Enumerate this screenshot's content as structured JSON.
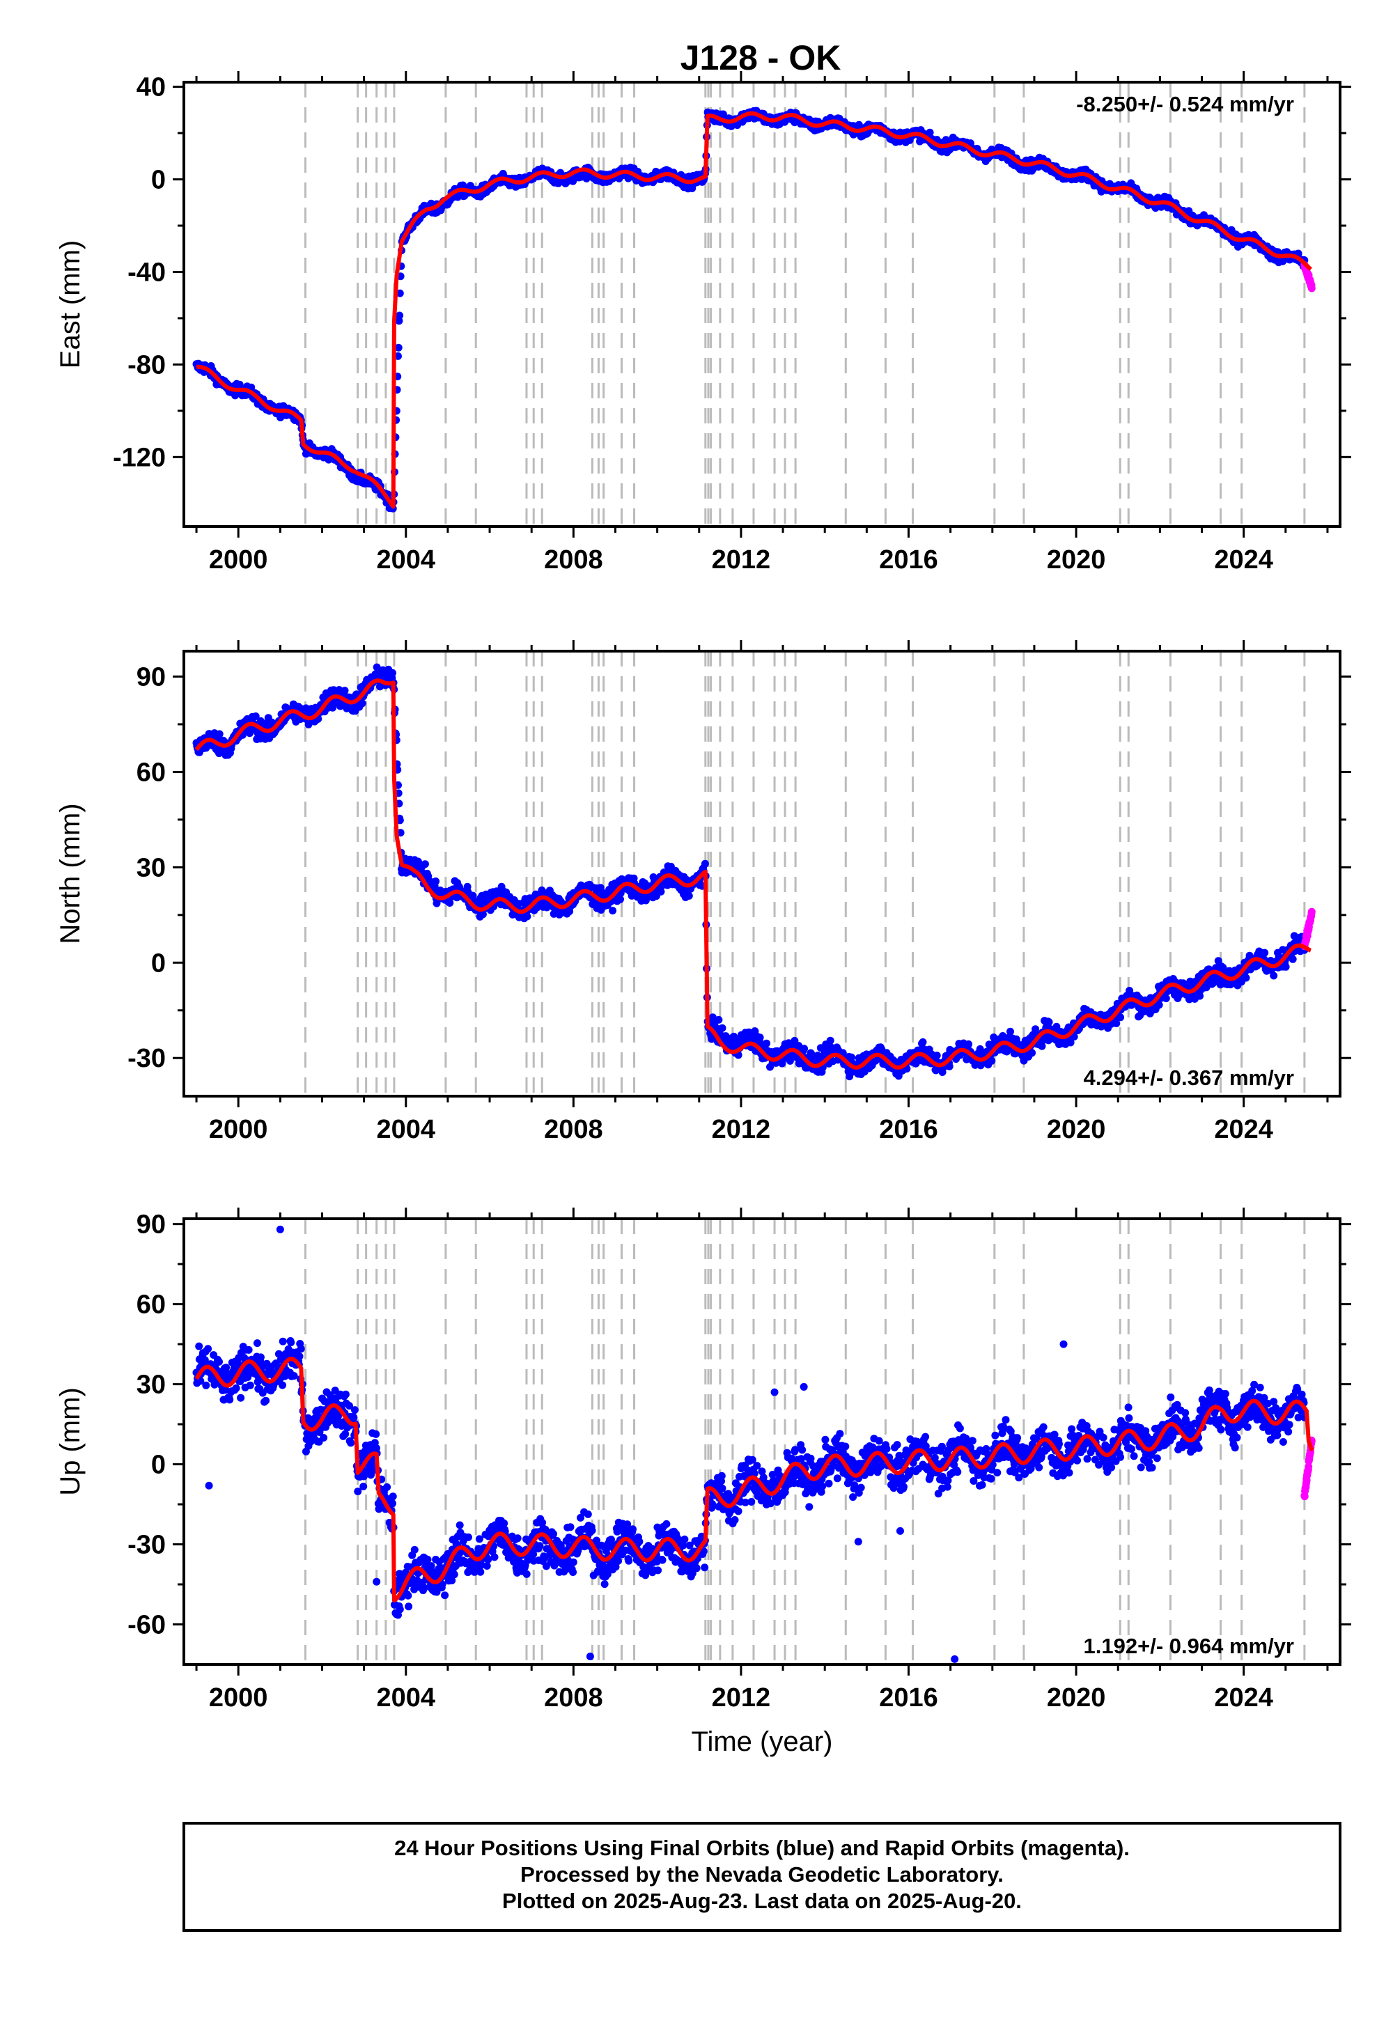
{
  "title": "J128 - OK",
  "footer": {
    "line1": "24 Hour Positions Using Final Orbits (blue) and Rapid Orbits (magenta).",
    "line2": "Processed by the Nevada Geodetic Laboratory.",
    "line3": "Plotted on 2025-Aug-23. Last data on 2025-Aug-20."
  },
  "colors": {
    "final_orbits": "#0000ff",
    "rapid_orbits": "#ff00ff",
    "model_fit": "#ff0000",
    "event_lines": "#bbbbbb"
  },
  "chart_data": [
    {
      "type": "scatter",
      "ylabel": "East (mm)",
      "xlabel": "",
      "xlim": [
        1998.7,
        2026.3
      ],
      "ylim": [
        -150,
        42
      ],
      "xticks": [
        "2000",
        "2004",
        "2008",
        "2012",
        "2016",
        "2020",
        "2024"
      ],
      "yticks": [
        "-120",
        "-80",
        "-40",
        "0",
        "40"
      ],
      "rate_label": "-8.250+/- 0.524 mm/yr",
      "rate_position": "top-right",
      "fit_points": [
        [
          1999.0,
          -81
        ],
        [
          1999.5,
          -86
        ],
        [
          2000.0,
          -91
        ],
        [
          2000.5,
          -95
        ],
        [
          2001.0,
          -100
        ],
        [
          2001.5,
          -104
        ],
        [
          2001.55,
          -114
        ],
        [
          2002.0,
          -118
        ],
        [
          2002.5,
          -123
        ],
        [
          2002.8,
          -125
        ],
        [
          2003.0,
          -128
        ],
        [
          2003.3,
          -133
        ],
        [
          2003.6,
          -138
        ],
        [
          2003.7,
          -140
        ],
        [
          2003.72,
          -60
        ],
        [
          2003.78,
          -40
        ],
        [
          2003.9,
          -26
        ],
        [
          2004.2,
          -19
        ],
        [
          2004.5,
          -13
        ],
        [
          2004.9,
          -8
        ],
        [
          2005.5,
          -5
        ],
        [
          2006.0,
          -2
        ],
        [
          2007.0,
          1
        ],
        [
          2008.0,
          3
        ],
        [
          2009.0,
          2
        ],
        [
          2010.0,
          1
        ],
        [
          2011.15,
          0
        ],
        [
          2011.2,
          26
        ],
        [
          2011.5,
          26
        ],
        [
          2012.0,
          27
        ],
        [
          2013.0,
          27
        ],
        [
          2014.0,
          24
        ],
        [
          2015.0,
          22
        ],
        [
          2016.0,
          19
        ],
        [
          2017.0,
          15
        ],
        [
          2018.0,
          11
        ],
        [
          2019.0,
          7
        ],
        [
          2020.0,
          2
        ],
        [
          2021.0,
          -4
        ],
        [
          2022.0,
          -10
        ],
        [
          2023.0,
          -18
        ],
        [
          2024.0,
          -26
        ],
        [
          2025.0,
          -33
        ],
        [
          2025.6,
          -38
        ]
      ],
      "final_envelope": [
        [
          1999.0,
          -81
        ],
        [
          2000.0,
          -91
        ],
        [
          2001.0,
          -100
        ],
        [
          2001.5,
          -104
        ],
        [
          2001.55,
          -114
        ],
        [
          2002.5,
          -123
        ],
        [
          2003.6,
          -138
        ],
        [
          2003.7,
          -141
        ],
        [
          2003.9,
          -26
        ],
        [
          2004.5,
          -13
        ],
        [
          2005.5,
          -5
        ],
        [
          2007.0,
          1
        ],
        [
          2009.0,
          2
        ],
        [
          2011.15,
          0
        ],
        [
          2011.2,
          26
        ],
        [
          2012.5,
          27
        ],
        [
          2014.0,
          24
        ],
        [
          2016.0,
          19
        ],
        [
          2018.0,
          11
        ],
        [
          2020.0,
          2
        ],
        [
          2022.0,
          -10
        ],
        [
          2024.0,
          -26
        ],
        [
          2025.5,
          -37
        ]
      ],
      "rapid_range": [
        2025.45,
        2025.63
      ],
      "rapid_values": [
        -37,
        -47
      ]
    },
    {
      "type": "scatter",
      "ylabel": "North (mm)",
      "xlabel": "",
      "xlim": [
        1998.7,
        2026.3
      ],
      "ylim": [
        -42,
        98
      ],
      "xticks": [
        "2000",
        "2004",
        "2008",
        "2012",
        "2016",
        "2020",
        "2024"
      ],
      "yticks": [
        "-30",
        "0",
        "30",
        "60",
        "90"
      ],
      "rate_label": "4.294+/- 0.367 mm/yr",
      "rate_position": "bottom-right",
      "fit_points": [
        [
          1999.0,
          67
        ],
        [
          1999.5,
          69
        ],
        [
          2000.0,
          72
        ],
        [
          2000.5,
          74
        ],
        [
          2001.0,
          76
        ],
        [
          2001.5,
          78
        ],
        [
          2002.0,
          80
        ],
        [
          2002.5,
          83
        ],
        [
          2003.0,
          85
        ],
        [
          2003.5,
          88
        ],
        [
          2003.7,
          90
        ],
        [
          2003.72,
          60
        ],
        [
          2003.78,
          42
        ],
        [
          2003.9,
          32
        ],
        [
          2004.2,
          27
        ],
        [
          2004.5,
          24
        ],
        [
          2005.0,
          21
        ],
        [
          2006.0,
          18
        ],
        [
          2007.0,
          18
        ],
        [
          2008.0,
          20
        ],
        [
          2009.0,
          22
        ],
        [
          2010.0,
          25
        ],
        [
          2011.15,
          27
        ],
        [
          2011.2,
          -22
        ],
        [
          2011.5,
          -25
        ],
        [
          2012.0,
          -27
        ],
        [
          2013.0,
          -29
        ],
        [
          2014.0,
          -31
        ],
        [
          2015.0,
          -31
        ],
        [
          2016.0,
          -31
        ],
        [
          2017.0,
          -30
        ],
        [
          2018.0,
          -28
        ],
        [
          2019.0,
          -25
        ],
        [
          2020.0,
          -20
        ],
        [
          2021.0,
          -15
        ],
        [
          2022.0,
          -10
        ],
        [
          2023.0,
          -6
        ],
        [
          2024.0,
          -2
        ],
        [
          2025.0,
          2
        ],
        [
          2025.6,
          5
        ]
      ],
      "final_envelope": [
        [
          1999.0,
          67
        ],
        [
          2001.0,
          76
        ],
        [
          2003.0,
          85
        ],
        [
          2003.7,
          91
        ],
        [
          2003.9,
          32
        ],
        [
          2005.0,
          21
        ],
        [
          2007.0,
          18
        ],
        [
          2009.0,
          22
        ],
        [
          2011.15,
          27
        ],
        [
          2011.2,
          -22
        ],
        [
          2013.0,
          -29
        ],
        [
          2015.0,
          -31
        ],
        [
          2017.0,
          -30
        ],
        [
          2019.0,
          -25
        ],
        [
          2021.0,
          -15
        ],
        [
          2023.0,
          -6
        ],
        [
          2025.0,
          2
        ],
        [
          2025.5,
          5
        ]
      ],
      "rapid_range": [
        2025.45,
        2025.63
      ],
      "rapid_values": [
        5,
        16
      ]
    },
    {
      "type": "scatter",
      "ylabel": "Up (mm)",
      "xlabel": "Time (year)",
      "xlim": [
        1998.7,
        2026.3
      ],
      "ylim": [
        -75,
        92
      ],
      "xticks": [
        "2000",
        "2004",
        "2008",
        "2012",
        "2016",
        "2020",
        "2024"
      ],
      "yticks": [
        "-60",
        "-30",
        "0",
        "30",
        "60",
        "90"
      ],
      "rate_label": "1.192+/- 0.964 mm/yr",
      "rate_position": "bottom-right",
      "fit_points": [
        [
          1999.0,
          32
        ],
        [
          1999.5,
          33
        ],
        [
          2000.0,
          34
        ],
        [
          2000.5,
          35
        ],
        [
          2001.0,
          35
        ],
        [
          2001.5,
          36
        ],
        [
          2001.55,
          17
        ],
        [
          2002.0,
          17
        ],
        [
          2002.5,
          19
        ],
        [
          2002.8,
          19
        ],
        [
          2002.85,
          0
        ],
        [
          2003.3,
          0
        ],
        [
          2003.35,
          -14
        ],
        [
          2003.7,
          -15
        ],
        [
          2003.72,
          -47
        ],
        [
          2004.0,
          -44
        ],
        [
          2004.5,
          -42
        ],
        [
          2005.0,
          -38
        ],
        [
          2005.5,
          -33
        ],
        [
          2006.0,
          -30
        ],
        [
          2007.0,
          -30
        ],
        [
          2008.0,
          -31
        ],
        [
          2009.0,
          -32
        ],
        [
          2010.0,
          -32
        ],
        [
          2011.15,
          -32
        ],
        [
          2011.2,
          -13
        ],
        [
          2011.5,
          -13
        ],
        [
          2012.0,
          -10
        ],
        [
          2012.5,
          -8
        ],
        [
          2013.0,
          -6
        ],
        [
          2013.5,
          -2
        ],
        [
          2014.0,
          -1
        ],
        [
          2015.0,
          0
        ],
        [
          2016.0,
          1
        ],
        [
          2017.0,
          2
        ],
        [
          2018.0,
          3
        ],
        [
          2019.0,
          5
        ],
        [
          2020.0,
          6
        ],
        [
          2021.0,
          8
        ],
        [
          2022.0,
          10
        ],
        [
          2023.0,
          14
        ],
        [
          2023.5,
          20
        ],
        [
          2024.0,
          20
        ],
        [
          2025.0,
          19
        ],
        [
          2025.5,
          20
        ],
        [
          2025.55,
          10
        ],
        [
          2025.63,
          8
        ]
      ],
      "final_envelope": [
        [
          1999.0,
          32
        ],
        [
          2001.5,
          36
        ],
        [
          2001.55,
          17
        ],
        [
          2002.8,
          19
        ],
        [
          2002.85,
          0
        ],
        [
          2003.3,
          0
        ],
        [
          2003.35,
          -14
        ],
        [
          2003.7,
          -15
        ],
        [
          2003.72,
          -47
        ],
        [
          2005.0,
          -38
        ],
        [
          2006.0,
          -30
        ],
        [
          2009.0,
          -32
        ],
        [
          2011.15,
          -32
        ],
        [
          2011.2,
          -13
        ],
        [
          2013.0,
          -6
        ],
        [
          2014.0,
          -1
        ],
        [
          2017.0,
          2
        ],
        [
          2020.0,
          6
        ],
        [
          2022.0,
          10
        ],
        [
          2023.5,
          20
        ],
        [
          2025.0,
          19
        ],
        [
          2025.45,
          20
        ]
      ],
      "rapid_range": [
        2025.45,
        2025.63
      ],
      "rapid_values": [
        -12,
        10
      ],
      "outliers": [
        [
          1999.3,
          -8
        ],
        [
          2001.0,
          88
        ],
        [
          2003.3,
          -44
        ],
        [
          2008.4,
          -72
        ],
        [
          2012.8,
          27
        ],
        [
          2013.5,
          29
        ],
        [
          2016.8,
          -9
        ],
        [
          2017.1,
          -73
        ],
        [
          2019.7,
          45
        ],
        [
          2014.8,
          -29
        ],
        [
          2015.8,
          -25
        ]
      ]
    }
  ],
  "event_lines": [
    2001.6,
    2002.85,
    2003.05,
    2003.3,
    2003.52,
    2003.72,
    2004.95,
    2005.67,
    2006.88,
    2007.05,
    2007.25,
    2008.45,
    2008.6,
    2008.72,
    2009.15,
    2009.45,
    2011.15,
    2011.22,
    2011.28,
    2011.5,
    2011.8,
    2012.3,
    2012.8,
    2013.05,
    2013.3,
    2014.5,
    2015.45,
    2016.1,
    2018.05,
    2018.75,
    2021.05,
    2021.25,
    2022.25,
    2023.45,
    2023.95,
    2025.45
  ]
}
